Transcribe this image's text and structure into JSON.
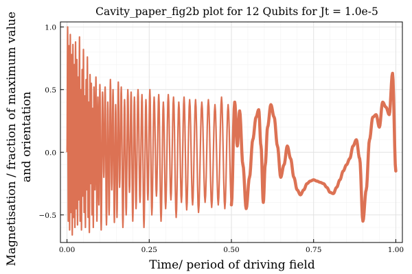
{
  "chart_data": {
    "type": "line",
    "title": "Cavity_paper_fig2b plot for 12 Qubits for Jt = 1.0e-5",
    "xlabel": "Time/ period of driving field",
    "ylabel_lines": [
      "Magnetisation / fraction of maximum value",
      "and orientation"
    ],
    "xlim": [
      -0.02,
      1.02
    ],
    "ylim": [
      -0.72,
      1.04
    ],
    "xticks": [
      0.0,
      0.25,
      0.5,
      0.75,
      1.0
    ],
    "xtick_labels": [
      "0.00",
      "0.25",
      "0.50",
      "0.75",
      "1.00"
    ],
    "yticks": [
      -0.5,
      0.0,
      0.5,
      1.0
    ],
    "ytick_labels": [
      "−0.5",
      "0.0",
      "0.5",
      "1.0"
    ],
    "grid": true,
    "legend": "none",
    "colors": {
      "series": "#dc7254",
      "grid_major": "#e2e2e2",
      "grid_minor": "#f2f2f2",
      "frame": "#000000"
    },
    "series": [
      {
        "values_description_points": [
          [
            0.0,
            0.0
          ],
          [
            0.002,
            1.0
          ],
          [
            0.004,
            -0.55
          ],
          [
            0.006,
            0.85
          ],
          [
            0.008,
            -0.62
          ],
          [
            0.01,
            0.94
          ],
          [
            0.012,
            -0.48
          ],
          [
            0.014,
            0.78
          ],
          [
            0.016,
            -0.66
          ],
          [
            0.018,
            0.86
          ],
          [
            0.02,
            -0.52
          ],
          [
            0.022,
            0.7
          ],
          [
            0.024,
            -0.6
          ],
          [
            0.026,
            0.88
          ],
          [
            0.028,
            -0.45
          ],
          [
            0.03,
            0.74
          ],
          [
            0.032,
            -0.58
          ],
          [
            0.034,
            0.6
          ],
          [
            0.036,
            -0.38
          ],
          [
            0.038,
            0.92
          ],
          [
            0.04,
            -0.55
          ],
          [
            0.042,
            0.5
          ],
          [
            0.044,
            -0.62
          ],
          [
            0.046,
            0.66
          ],
          [
            0.048,
            -0.35
          ],
          [
            0.05,
            0.82
          ],
          [
            0.052,
            -0.48
          ],
          [
            0.054,
            0.45
          ],
          [
            0.056,
            -0.6
          ],
          [
            0.058,
            0.58
          ],
          [
            0.06,
            -0.3
          ],
          [
            0.062,
            0.76
          ],
          [
            0.064,
            -0.52
          ],
          [
            0.066,
            0.4
          ],
          [
            0.068,
            -0.64
          ],
          [
            0.07,
            0.62
          ],
          [
            0.072,
            -0.25
          ],
          [
            0.074,
            0.55
          ],
          [
            0.076,
            -0.5
          ],
          [
            0.078,
            0.35
          ],
          [
            0.08,
            -0.6
          ],
          [
            0.082,
            0.52
          ],
          [
            0.085,
            -0.3
          ],
          [
            0.088,
            0.6
          ],
          [
            0.091,
            -0.55
          ],
          [
            0.094,
            0.44
          ],
          [
            0.097,
            -0.42
          ],
          [
            0.1,
            0.54
          ],
          [
            0.104,
            -0.62
          ],
          [
            0.108,
            0.48
          ],
          [
            0.112,
            -0.2
          ],
          [
            0.116,
            0.52
          ],
          [
            0.12,
            -0.58
          ],
          [
            0.124,
            0.4
          ],
          [
            0.128,
            -0.5
          ],
          [
            0.132,
            0.58
          ],
          [
            0.136,
            -0.3
          ],
          [
            0.14,
            0.5
          ],
          [
            0.144,
            -0.56
          ],
          [
            0.148,
            0.38
          ],
          [
            0.152,
            -0.52
          ],
          [
            0.156,
            0.56
          ],
          [
            0.16,
            -0.28
          ],
          [
            0.165,
            0.52
          ],
          [
            0.17,
            -0.6
          ],
          [
            0.175,
            0.42
          ],
          [
            0.18,
            -0.5
          ],
          [
            0.185,
            0.5
          ],
          [
            0.19,
            -0.32
          ],
          [
            0.195,
            0.48
          ],
          [
            0.2,
            -0.55
          ],
          [
            0.205,
            0.44
          ],
          [
            0.21,
            -0.45
          ],
          [
            0.216,
            0.5
          ],
          [
            0.222,
            -0.4
          ],
          [
            0.228,
            0.46
          ],
          [
            0.234,
            -0.6
          ],
          [
            0.24,
            0.42
          ],
          [
            0.246,
            -0.38
          ],
          [
            0.252,
            0.5
          ],
          [
            0.258,
            -0.5
          ],
          [
            0.265,
            0.44
          ],
          [
            0.272,
            -0.35
          ],
          [
            0.279,
            0.46
          ],
          [
            0.286,
            -0.55
          ],
          [
            0.293,
            0.4
          ],
          [
            0.3,
            -0.45
          ],
          [
            0.308,
            0.46
          ],
          [
            0.316,
            -0.38
          ],
          [
            0.324,
            0.44
          ],
          [
            0.332,
            -0.52
          ],
          [
            0.34,
            0.4
          ],
          [
            0.348,
            -0.4
          ],
          [
            0.356,
            0.44
          ],
          [
            0.364,
            -0.46
          ],
          [
            0.373,
            0.42
          ],
          [
            0.382,
            -0.42
          ],
          [
            0.391,
            0.42
          ],
          [
            0.4,
            -0.48
          ],
          [
            0.41,
            0.4
          ],
          [
            0.42,
            -0.4
          ],
          [
            0.43,
            0.42
          ],
          [
            0.44,
            -0.44
          ],
          [
            0.45,
            0.38
          ],
          [
            0.46,
            -0.42
          ],
          [
            0.47,
            0.44
          ],
          [
            0.48,
            -0.45
          ],
          [
            0.49,
            0.38
          ],
          [
            0.5,
            -0.42
          ],
          [
            0.51,
            0.4
          ],
          [
            0.518,
            0.05
          ],
          [
            0.525,
            0.33
          ],
          [
            0.535,
            -0.1
          ],
          [
            0.545,
            -0.45
          ],
          [
            0.555,
            -0.2
          ],
          [
            0.565,
            0.1
          ],
          [
            0.575,
            0.28
          ],
          [
            0.583,
            0.34
          ],
          [
            0.59,
            0.05
          ],
          [
            0.597,
            -0.4
          ],
          [
            0.603,
            -0.1
          ],
          [
            0.61,
            0.2
          ],
          [
            0.62,
            0.38
          ],
          [
            0.63,
            0.28
          ],
          [
            0.64,
            0.05
          ],
          [
            0.65,
            -0.2
          ],
          [
            0.66,
            -0.1
          ],
          [
            0.67,
            0.05
          ],
          [
            0.68,
            -0.05
          ],
          [
            0.69,
            -0.2
          ],
          [
            0.7,
            -0.3
          ],
          [
            0.71,
            -0.34
          ],
          [
            0.72,
            -0.3
          ],
          [
            0.73,
            -0.25
          ],
          [
            0.74,
            -0.23
          ],
          [
            0.75,
            -0.22
          ],
          [
            0.76,
            -0.23
          ],
          [
            0.77,
            -0.24
          ],
          [
            0.78,
            -0.25
          ],
          [
            0.79,
            -0.28
          ],
          [
            0.8,
            -0.32
          ],
          [
            0.81,
            -0.33
          ],
          [
            0.82,
            -0.28
          ],
          [
            0.83,
            -0.22
          ],
          [
            0.84,
            -0.15
          ],
          [
            0.85,
            -0.1
          ],
          [
            0.86,
            -0.05
          ],
          [
            0.87,
            0.05
          ],
          [
            0.88,
            0.1
          ],
          [
            0.89,
            -0.05
          ],
          [
            0.9,
            -0.55
          ],
          [
            0.91,
            -0.3
          ],
          [
            0.92,
            0.1
          ],
          [
            0.93,
            0.28
          ],
          [
            0.94,
            0.3
          ],
          [
            0.95,
            0.2
          ],
          [
            0.96,
            0.4
          ],
          [
            0.97,
            0.36
          ],
          [
            0.98,
            0.3
          ],
          [
            0.99,
            0.63
          ],
          [
            1.0,
            -0.15
          ]
        ]
      }
    ]
  }
}
